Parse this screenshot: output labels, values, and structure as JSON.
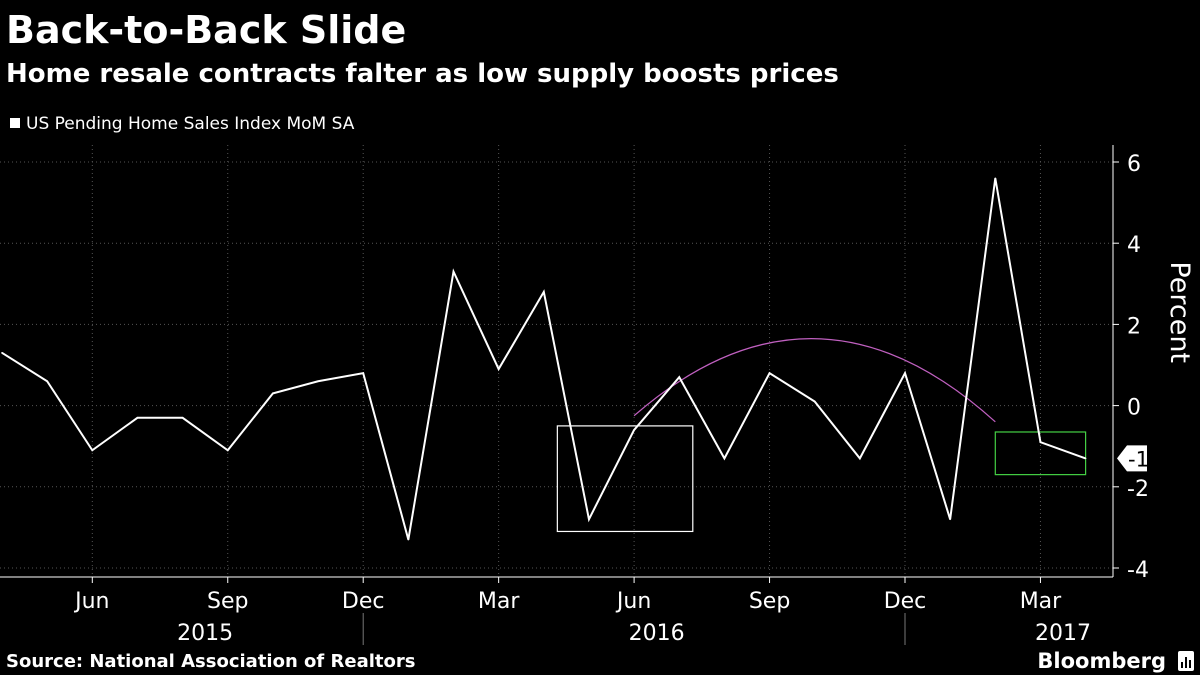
{
  "header": {
    "title": "Back-to-Back Slide",
    "subtitle": "Home resale contracts falter as low supply boosts prices"
  },
  "legend": {
    "label": "US Pending Home Sales Index MoM SA"
  },
  "footer": {
    "source": "Source: National Association of Realtors",
    "brand": "Bloomberg"
  },
  "colors": {
    "background": "#000000",
    "line": "#ffffff",
    "grid": "#555555",
    "trend_curve": "#c060c0",
    "box_white": "#ffffff",
    "box_green": "#44d044"
  },
  "chart_data": {
    "type": "line",
    "title": "Back-to-Back Slide",
    "subtitle": "Home resale contracts falter as low supply boosts prices",
    "xlabel": "",
    "ylabel": "Percent",
    "ylim": [
      -4,
      6
    ],
    "yticks": [
      6,
      4,
      2,
      0,
      -2,
      -4
    ],
    "ytick_labels": [
      "6",
      "4",
      "2",
      "0",
      "-2",
      "-4"
    ],
    "y_axis_side": "right",
    "grid": true,
    "x": [
      "2015-04",
      "2015-05",
      "2015-06",
      "2015-07",
      "2015-08",
      "2015-09",
      "2015-10",
      "2015-11",
      "2015-12",
      "2016-01",
      "2016-02",
      "2016-03",
      "2016-04",
      "2016-05",
      "2016-06",
      "2016-07",
      "2016-08",
      "2016-09",
      "2016-10",
      "2016-11",
      "2016-12",
      "2017-01",
      "2017-02",
      "2017-03",
      "2017-04"
    ],
    "series": [
      {
        "name": "US Pending Home Sales Index MoM SA",
        "values": [
          1.3,
          0.6,
          -1.1,
          -0.3,
          -0.3,
          -1.1,
          0.3,
          0.6,
          0.8,
          -3.3,
          3.3,
          0.9,
          2.8,
          -2.8,
          -0.6,
          0.7,
          -1.3,
          0.8,
          0.1,
          -1.3,
          0.8,
          -2.8,
          5.6,
          -0.9,
          -1.3
        ]
      }
    ],
    "x_tick_labels": [
      "Jun",
      "Sep",
      "Dec",
      "Mar",
      "Jun",
      "Sep",
      "Dec",
      "Mar"
    ],
    "x_tick_months": [
      "2015-06",
      "2015-09",
      "2015-12",
      "2016-03",
      "2016-06",
      "2016-09",
      "2016-12",
      "2017-03"
    ],
    "year_labels": [
      "2015",
      "2016",
      "2017"
    ],
    "year_dividers": [
      "2015-12",
      "2016-12"
    ],
    "last_value_label": "-1",
    "annotations": [
      {
        "kind": "box",
        "color": "white",
        "x_from": "2016-04.3",
        "x_to": "2016-07.3",
        "y_from": -3.1,
        "y_to": -0.5
      },
      {
        "kind": "box",
        "color": "green",
        "x_from": "2017-02",
        "x_to": "2017-04",
        "y_from": -1.7,
        "y_to": -0.65
      },
      {
        "kind": "arc",
        "color": "purple",
        "x_from": "2016-06",
        "x_to": "2017-02",
        "y_start": -0.25,
        "y_peak": 1.65,
        "y_end": -0.4
      }
    ]
  }
}
